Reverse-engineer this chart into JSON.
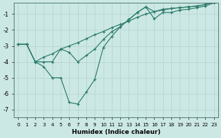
{
  "xlabel": "Humidex (Indice chaleur)",
  "bg_color": "#cce8e4",
  "line_color": "#2a7a6a",
  "grid_color": "#b8d8d4",
  "x_values": [
    0,
    1,
    2,
    3,
    4,
    5,
    6,
    7,
    8,
    9,
    10,
    11,
    12,
    13,
    14,
    15,
    16,
    17,
    18,
    19,
    20,
    21,
    22,
    23
  ],
  "line1_y": [
    -2.9,
    -2.9,
    -4.0,
    -4.0,
    -4.0,
    -3.2,
    -3.4,
    -4.0,
    -3.6,
    -3.2,
    -2.6,
    -2.1,
    -1.8,
    -1.35,
    -0.9,
    -0.55,
    -0.85,
    -0.7,
    -0.65,
    -0.6,
    -0.55,
    -0.5,
    -0.4,
    -0.25
  ],
  "line2_y": [
    -2.9,
    -2.9,
    -4.0,
    -4.3,
    -5.0,
    -5.0,
    -6.55,
    -6.65,
    -5.9,
    -5.1,
    -3.1,
    -2.4,
    -1.8,
    -1.35,
    -0.9,
    -0.55,
    -1.3,
    -0.9,
    -0.9,
    -0.75,
    -0.7,
    -0.6,
    -0.5,
    -0.3
  ],
  "line3_y": [
    -2.9,
    -2.9,
    -4.0,
    -3.7,
    -3.5,
    -3.2,
    -3.0,
    -2.8,
    -2.55,
    -2.3,
    -2.1,
    -1.85,
    -1.65,
    -1.45,
    -1.2,
    -1.0,
    -0.85,
    -0.75,
    -0.65,
    -0.6,
    -0.55,
    -0.5,
    -0.4,
    -0.25
  ],
  "xlim": [
    -0.5,
    23.5
  ],
  "ylim_min": -7.5,
  "ylim_max": -0.3,
  "yticks": [
    -7,
    -6,
    -5,
    -4,
    -3,
    -2,
    -1
  ]
}
